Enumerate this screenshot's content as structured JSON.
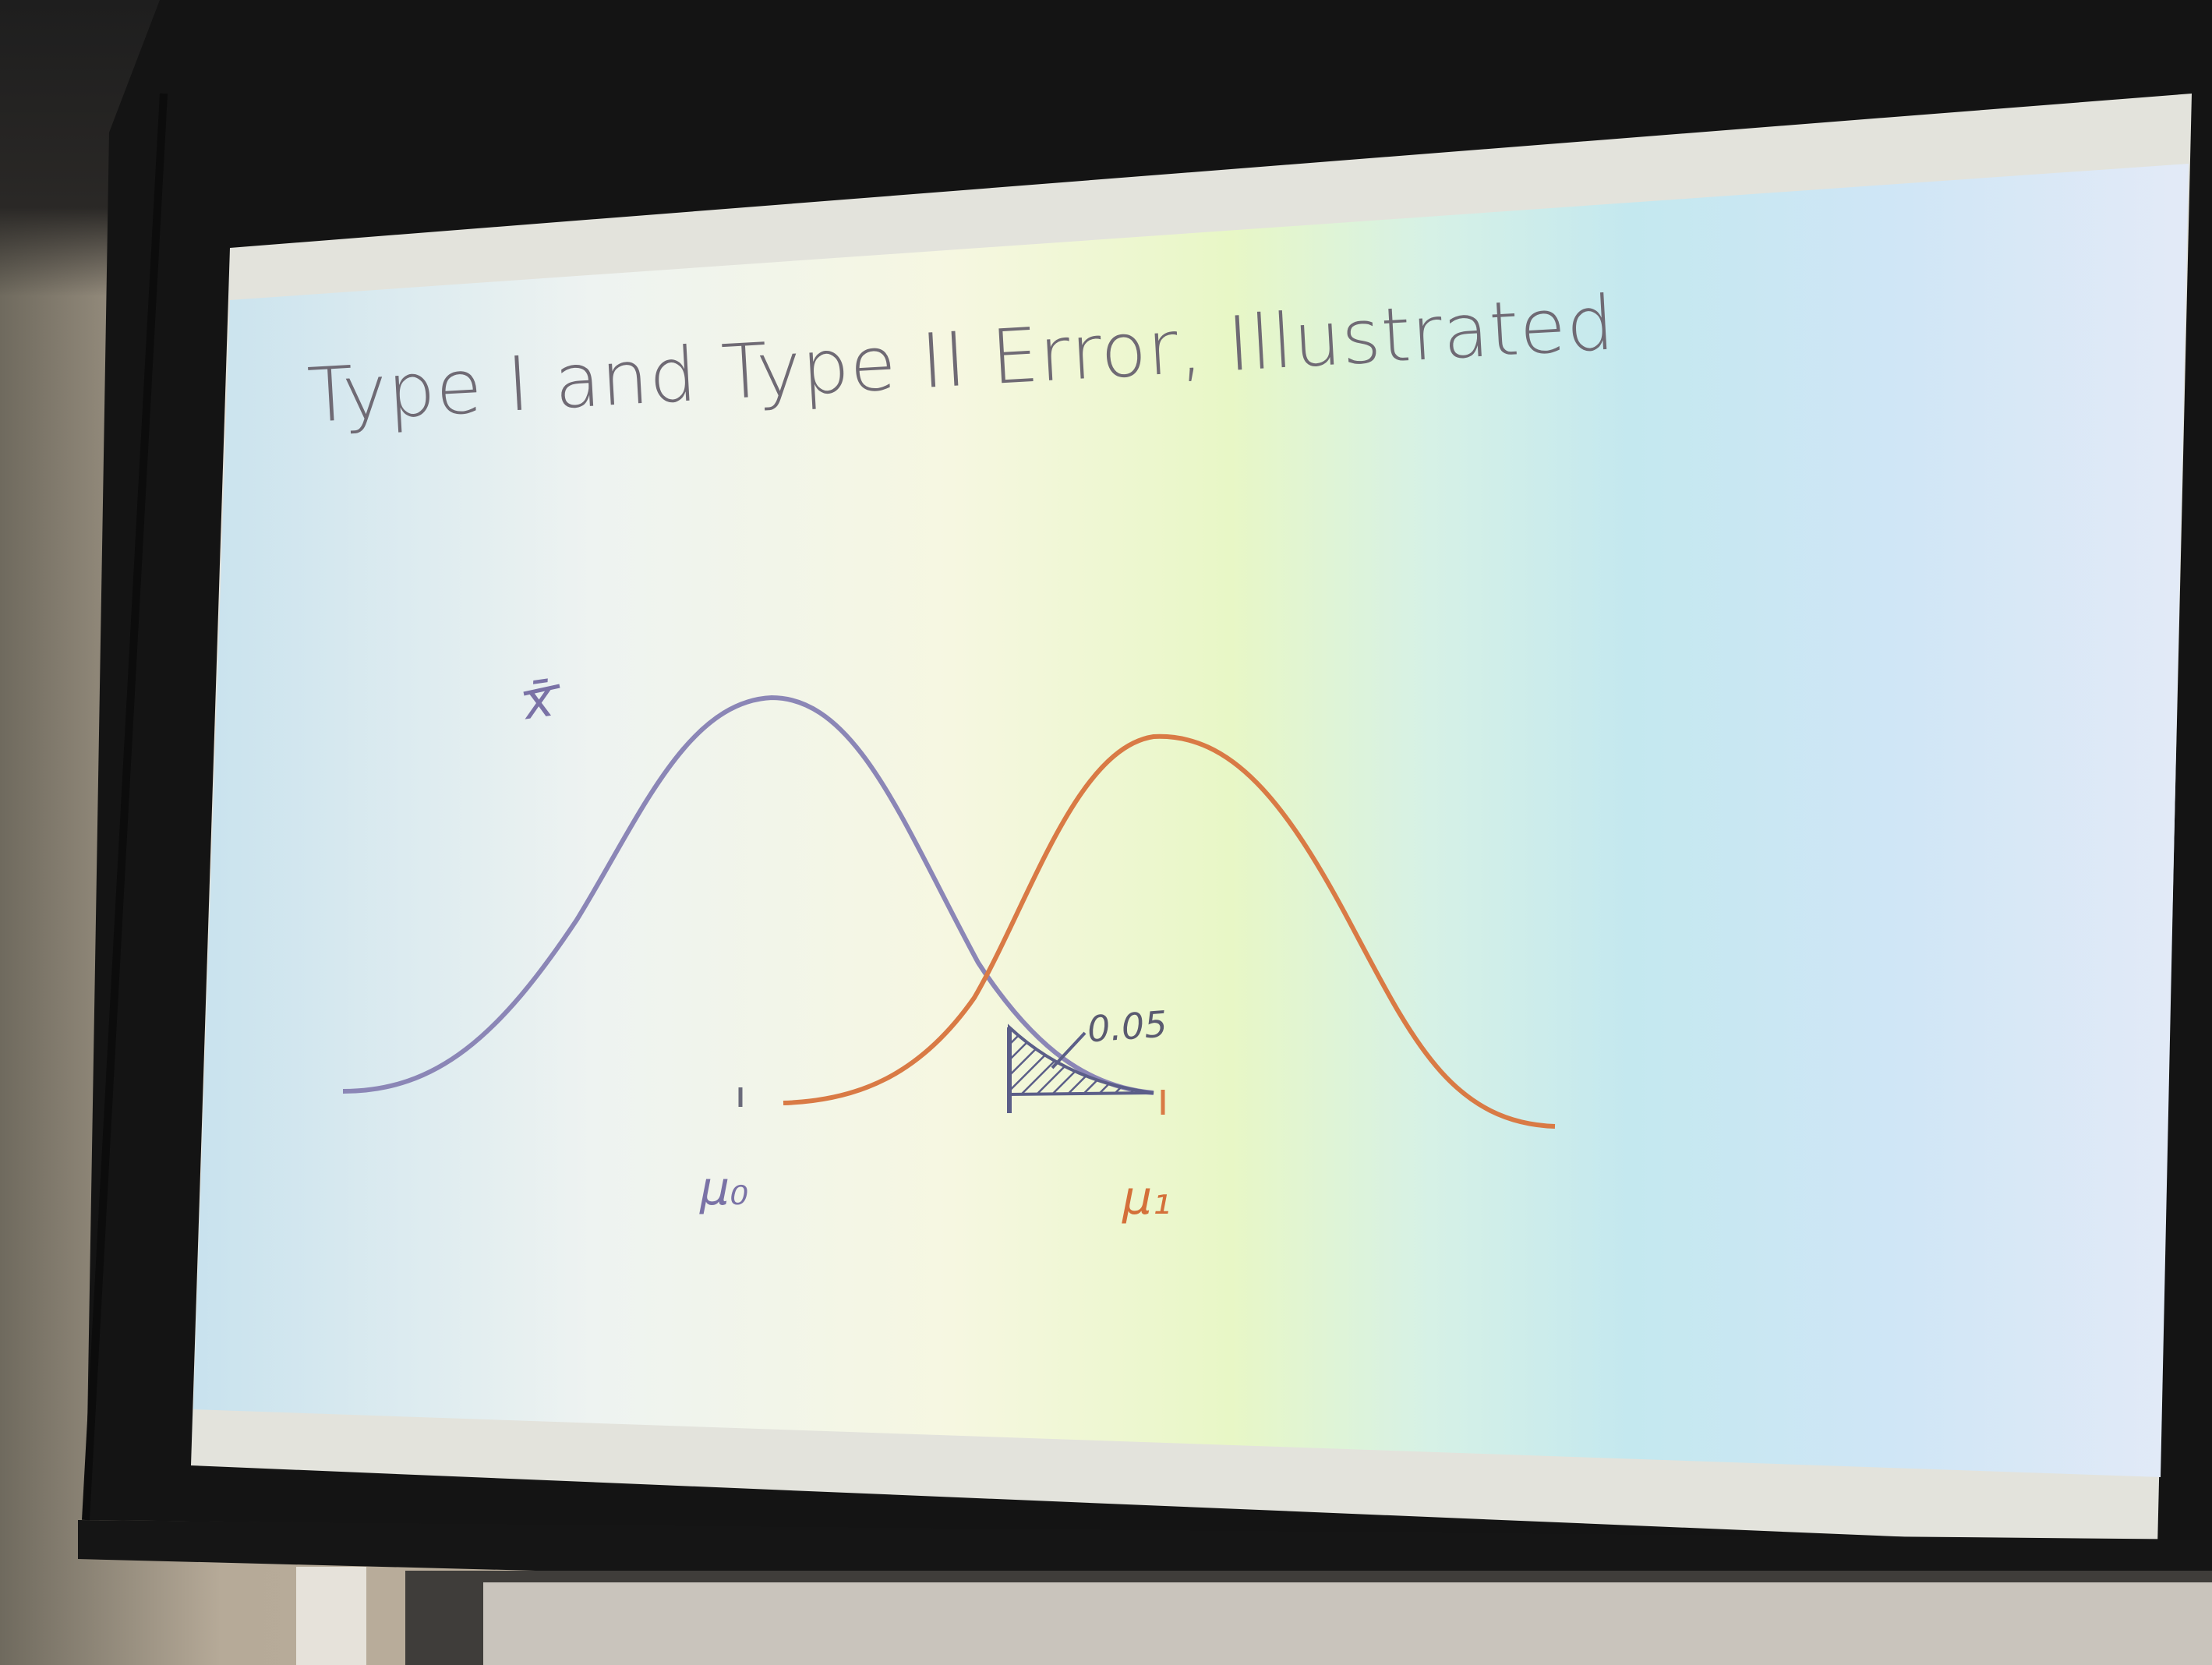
{
  "slide": {
    "title": "Type I and Type II Error, Illustrated",
    "labels": {
      "xbar": "x̄",
      "alpha": "0.05",
      "mu0": "μ₀",
      "mu1": "μ₁"
    },
    "colors": {
      "null_curve": "#8b86b6",
      "alt_curve": "#d97a45",
      "hatch": "#5b5e88"
    }
  }
}
